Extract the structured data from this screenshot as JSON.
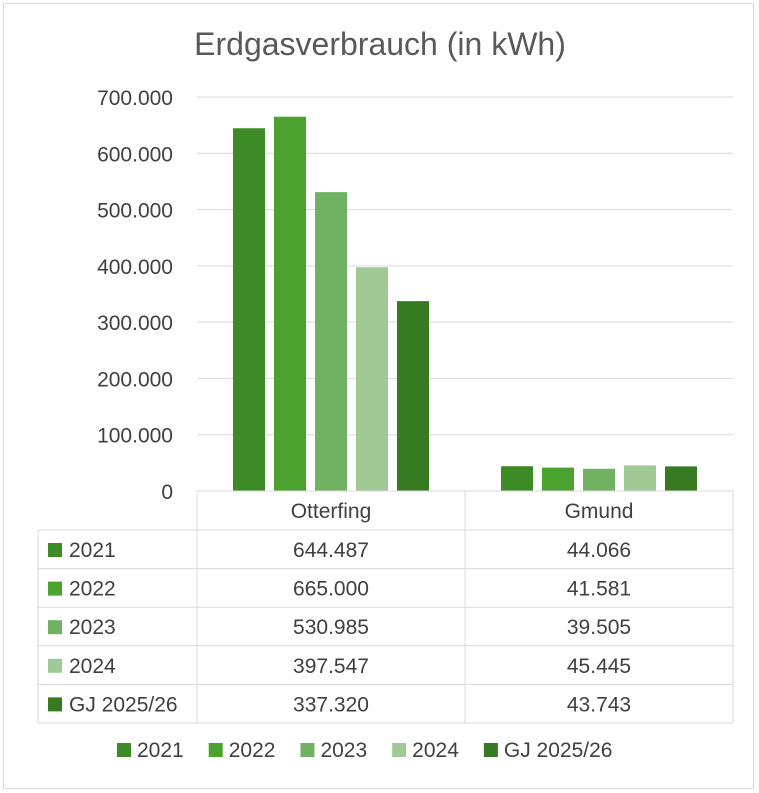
{
  "chart_data": {
    "type": "bar",
    "title": "Erdgasverbrauch (in kWh)",
    "categories": [
      "Otterfing",
      "Gmund"
    ],
    "ylim": [
      0,
      700000
    ],
    "yticks": [
      0,
      100000,
      200000,
      300000,
      400000,
      500000,
      600000,
      700000
    ],
    "ytick_labels": [
      "0",
      "100.000",
      "200.000",
      "300.000",
      "400.000",
      "500.000",
      "600.000",
      "700.000"
    ],
    "grid": true,
    "legend_position": "bottom",
    "data_table": true,
    "series": [
      {
        "name": "2021",
        "color": "#3d8b27",
        "values": [
          644487,
          44066
        ],
        "labels": [
          "644.487",
          "44.066"
        ]
      },
      {
        "name": "2022",
        "color": "#4ca22e",
        "values": [
          665000,
          41581
        ],
        "labels": [
          "665.000",
          "41.581"
        ]
      },
      {
        "name": "2023",
        "color": "#70b261",
        "values": [
          530985,
          39505
        ],
        "labels": [
          "530.985",
          "39.505"
        ]
      },
      {
        "name": "2024",
        "color": "#a0c995",
        "values": [
          397547,
          45445
        ],
        "labels": [
          "397.547",
          "45.445"
        ]
      },
      {
        "name": "GJ 2025/26",
        "color": "#367a21",
        "values": [
          337320,
          43743
        ],
        "labels": [
          "337.320",
          "43.743"
        ]
      }
    ]
  }
}
